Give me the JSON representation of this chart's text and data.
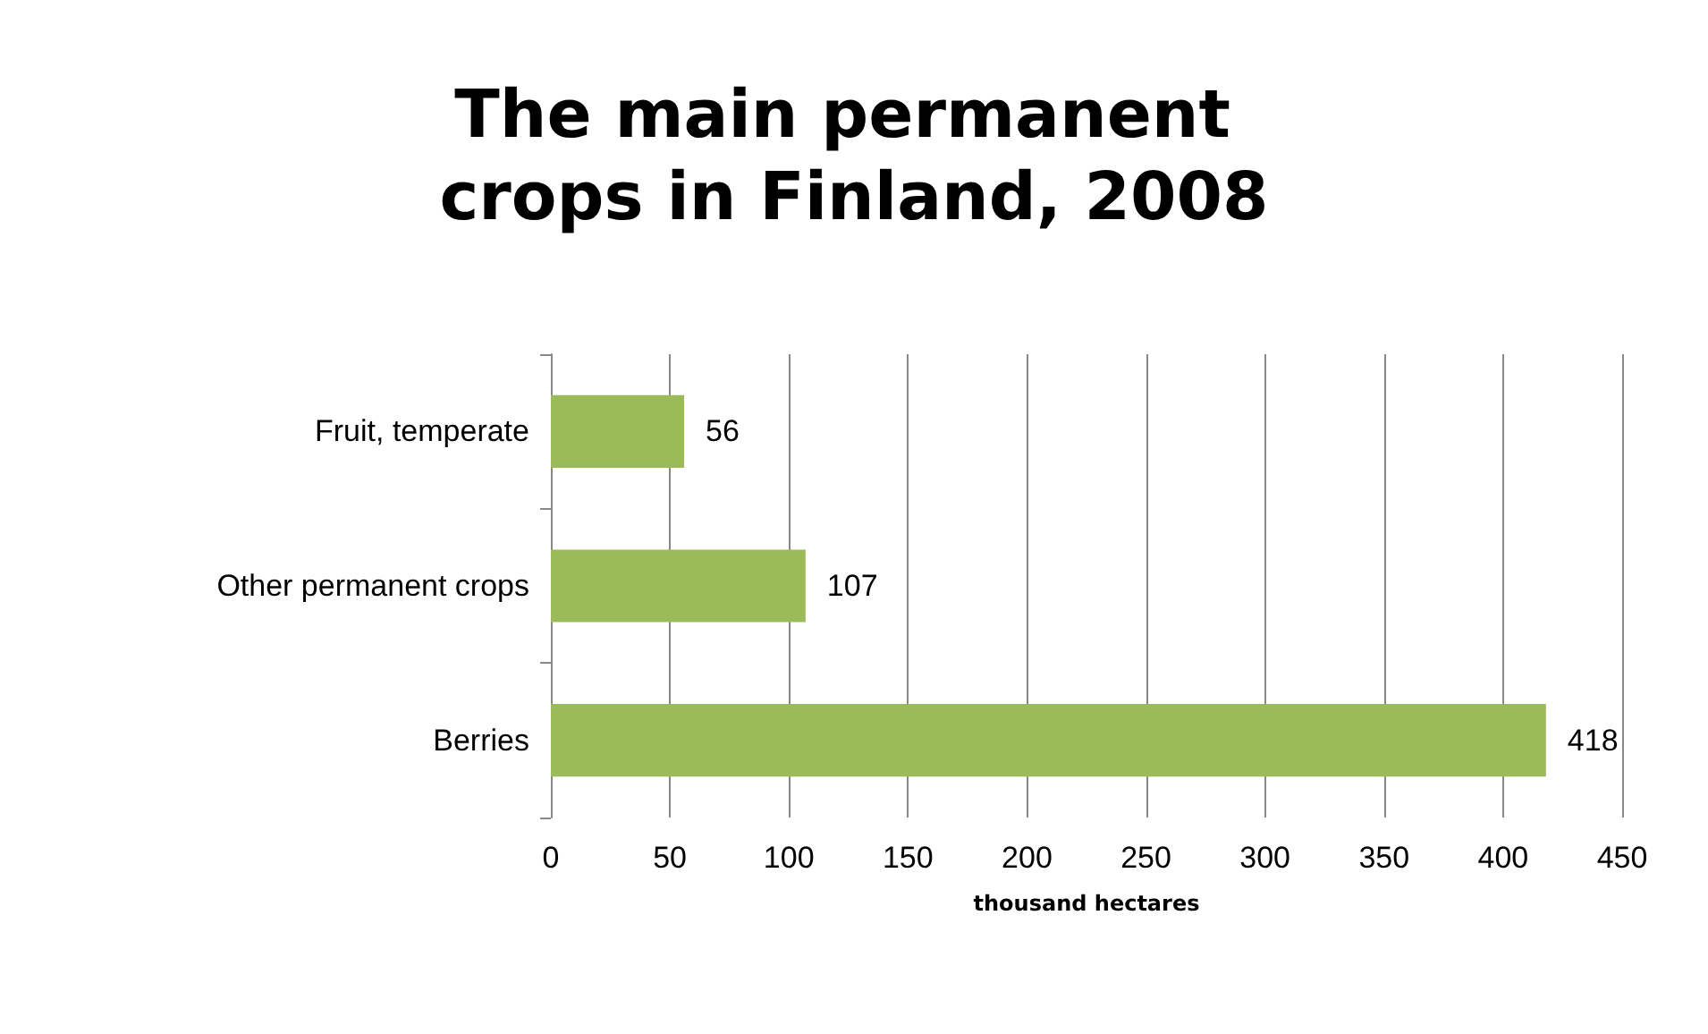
{
  "chart_data": {
    "type": "bar",
    "orientation": "horizontal",
    "title": "The main permanent crops in Finland, 2008",
    "xlabel": "thousand hectares",
    "categories": [
      "Fruit, temperate",
      "Other permanent crops",
      "Berries"
    ],
    "values": [
      56,
      107,
      418
    ],
    "color": "#9bbb59",
    "xlim": [
      0,
      450
    ],
    "xticks": [
      0,
      50,
      100,
      150,
      200,
      250,
      300,
      350,
      400,
      450
    ],
    "grid": "x",
    "data_labels": true
  }
}
